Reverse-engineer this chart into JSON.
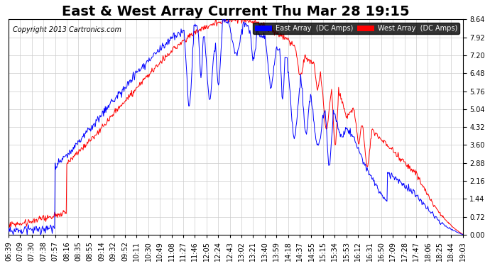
{
  "title": "East & West Array Current Thu Mar 28 19:15",
  "copyright": "Copyright 2013 Cartronics.com",
  "legend_east": "East Array  (DC Amps)",
  "legend_west": "West Array  (DC Amps)",
  "east_color": "#0000ff",
  "west_color": "#ff0000",
  "background_color": "#ffffff",
  "grid_color": "#cccccc",
  "ylim": [
    0,
    8.64
  ],
  "yticks": [
    0.0,
    0.72,
    1.44,
    2.16,
    2.88,
    3.6,
    4.32,
    5.04,
    5.76,
    6.48,
    7.2,
    7.92,
    8.64
  ],
  "xtick_labels": [
    "06:39",
    "07:09",
    "07:30",
    "07:38",
    "07:57",
    "08:16",
    "08:35",
    "08:55",
    "09:14",
    "09:32",
    "09:52",
    "10:11",
    "10:30",
    "10:49",
    "11:08",
    "11:27",
    "11:46",
    "12:05",
    "12:24",
    "12:43",
    "13:02",
    "13:21",
    "13:40",
    "13:59",
    "14:18",
    "14:37",
    "14:55",
    "15:15",
    "15:34",
    "15:53",
    "16:12",
    "16:31",
    "16:50",
    "17:09",
    "17:28",
    "17:47",
    "18:06",
    "18:25",
    "18:44",
    "19:03"
  ],
  "title_fontsize": 14,
  "axis_fontsize": 7,
  "copyright_fontsize": 7
}
